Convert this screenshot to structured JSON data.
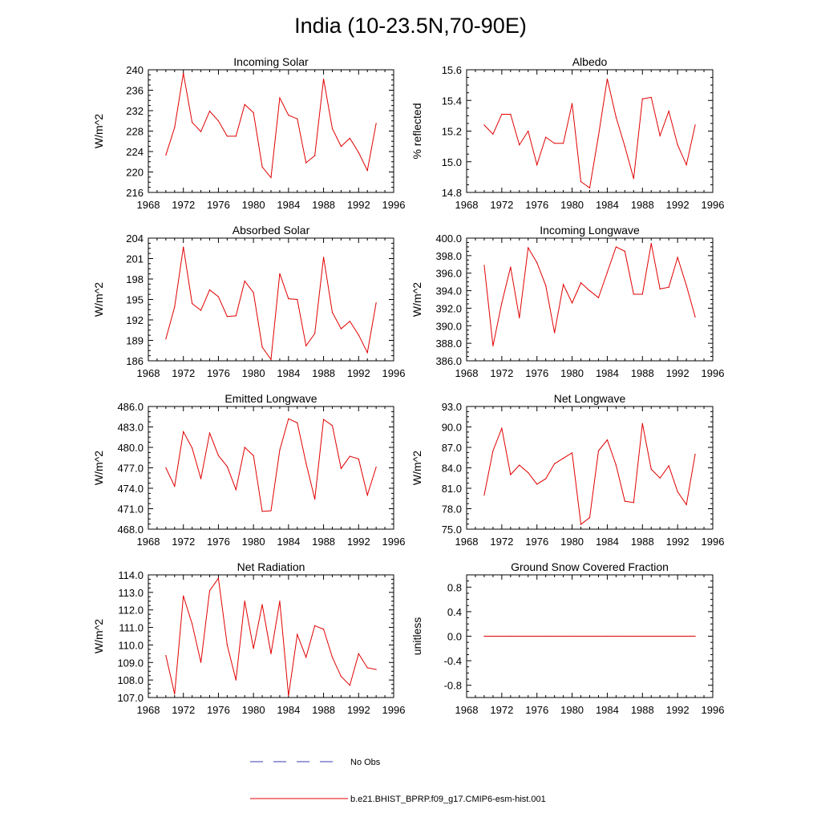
{
  "figure": {
    "title": "India (10-23.5N,70-90E)",
    "series_color": "#e00000",
    "obs_color": "#3b3bb3"
  },
  "legend": {
    "obs_label": "No Obs",
    "model_label": "b.e21.BHIST_BPRP.f09_g17.CMIP6-esm-hist.001"
  },
  "chart_data": [
    {
      "type": "line",
      "title": "Incoming Solar",
      "ylabel": "W/m^2",
      "xlabel": "",
      "xlim": [
        1968,
        1996
      ],
      "xticks": [
        "1968",
        "1972",
        "1976",
        "1980",
        "1984",
        "1988",
        "1992",
        "1996"
      ],
      "ylim": [
        216,
        240
      ],
      "yticks": [
        "216",
        "220",
        "224",
        "228",
        "232",
        "236",
        "240"
      ],
      "series": [
        {
          "name": "b.e21.BHIST_BPRP.f09_g17.CMIP6-esm-hist.001",
          "x": [
            1970,
            1971,
            1972,
            1973,
            1974,
            1975,
            1976,
            1977,
            1978,
            1979,
            1980,
            1981,
            1982,
            1983,
            1984,
            1985,
            1986,
            1987,
            1988,
            1989,
            1990,
            1991,
            1992,
            1993,
            1994
          ],
          "values": [
            223.3,
            228.7,
            239.3,
            229.7,
            227.9,
            231.9,
            230.0,
            227.0,
            227.0,
            233.2,
            231.6,
            221.0,
            218.9,
            234.5,
            231.1,
            230.4,
            221.8,
            223.2,
            238.2,
            228.5,
            225.0,
            226.6,
            223.8,
            220.3,
            229.5
          ]
        }
      ]
    },
    {
      "type": "line",
      "title": "Albedo",
      "ylabel": "% reflected",
      "xlabel": "",
      "xlim": [
        1968,
        1996
      ],
      "xticks": [
        "1968",
        "1972",
        "1976",
        "1980",
        "1984",
        "1988",
        "1992",
        "1996"
      ],
      "ylim": [
        14.8,
        15.6
      ],
      "yticks": [
        "14.8",
        "15.0",
        "15.2",
        "15.4",
        "15.6"
      ],
      "series": [
        {
          "name": "b.e21.BHIST_BPRP.f09_g17.CMIP6-esm-hist.001",
          "x": [
            1970,
            1971,
            1972,
            1973,
            1974,
            1975,
            1976,
            1977,
            1978,
            1979,
            1980,
            1981,
            1982,
            1983,
            1984,
            1985,
            1986,
            1987,
            1988,
            1989,
            1990,
            1991,
            1992,
            1993,
            1994
          ],
          "values": [
            15.24,
            15.18,
            15.31,
            15.31,
            15.11,
            15.2,
            14.98,
            15.16,
            15.12,
            15.12,
            15.38,
            14.87,
            14.83,
            15.17,
            15.54,
            15.29,
            15.1,
            14.89,
            15.41,
            15.42,
            15.17,
            15.33,
            15.11,
            14.98,
            15.24
          ]
        }
      ]
    },
    {
      "type": "line",
      "title": "Absorbed Solar",
      "ylabel": "W/m^2",
      "xlabel": "",
      "xlim": [
        1968,
        1996
      ],
      "xticks": [
        "1968",
        "1972",
        "1976",
        "1980",
        "1984",
        "1988",
        "1992",
        "1996"
      ],
      "ylim": [
        186,
        204
      ],
      "yticks": [
        "186",
        "189",
        "192",
        "195",
        "198",
        "201",
        "204"
      ],
      "series": [
        {
          "name": "b.e21.BHIST_BPRP.f09_g17.CMIP6-esm-hist.001",
          "x": [
            1970,
            1971,
            1972,
            1973,
            1974,
            1975,
            1976,
            1977,
            1978,
            1979,
            1980,
            1981,
            1982,
            1983,
            1984,
            1985,
            1986,
            1987,
            1988,
            1989,
            1990,
            1991,
            1992,
            1993,
            1994
          ],
          "values": [
            189.2,
            193.9,
            202.7,
            194.4,
            193.4,
            196.4,
            195.4,
            192.5,
            192.6,
            197.7,
            196.0,
            188.0,
            186.2,
            198.8,
            195.1,
            195.0,
            188.2,
            190.0,
            201.2,
            193.1,
            190.7,
            191.8,
            189.8,
            187.2,
            194.5
          ]
        }
      ]
    },
    {
      "type": "line",
      "title": "Incoming Longwave",
      "ylabel": "W/m^2",
      "xlabel": "",
      "xlim": [
        1968,
        1996
      ],
      "xticks": [
        "1968",
        "1972",
        "1976",
        "1980",
        "1984",
        "1988",
        "1992",
        "1996"
      ],
      "ylim": [
        386,
        400
      ],
      "yticks": [
        "386.0",
        "388.0",
        "390.0",
        "392.0",
        "394.0",
        "396.0",
        "398.0",
        "400.0"
      ],
      "series": [
        {
          "name": "b.e21.BHIST_BPRP.f09_g17.CMIP6-esm-hist.001",
          "x": [
            1970,
            1971,
            1972,
            1973,
            1974,
            1975,
            1976,
            1977,
            1978,
            1979,
            1980,
            1981,
            1982,
            1983,
            1984,
            1985,
            1986,
            1987,
            1988,
            1989,
            1990,
            1991,
            1992,
            1993,
            1994
          ],
          "values": [
            396.9,
            387.7,
            392.6,
            396.7,
            390.9,
            398.9,
            397.2,
            394.6,
            389.2,
            394.7,
            392.6,
            394.9,
            394.0,
            393.2,
            396.1,
            399.0,
            398.5,
            393.6,
            393.6,
            399.4,
            394.2,
            394.4,
            397.8,
            394.6,
            391.0
          ]
        }
      ]
    },
    {
      "type": "line",
      "title": "Emitted Longwave",
      "ylabel": "W/m^2",
      "xlabel": "",
      "xlim": [
        1968,
        1996
      ],
      "xticks": [
        "1968",
        "1972",
        "1976",
        "1980",
        "1984",
        "1988",
        "1992",
        "1996"
      ],
      "ylim": [
        468,
        486
      ],
      "yticks": [
        "468.0",
        "471.0",
        "474.0",
        "477.0",
        "480.0",
        "483.0",
        "486.0"
      ],
      "series": [
        {
          "name": "b.e21.BHIST_BPRP.f09_g17.CMIP6-esm-hist.001",
          "x": [
            1970,
            1971,
            1972,
            1973,
            1974,
            1975,
            1976,
            1977,
            1978,
            1979,
            1980,
            1981,
            1982,
            1983,
            1984,
            1985,
            1986,
            1987,
            1988,
            1989,
            1990,
            1991,
            1992,
            1993,
            1994
          ],
          "values": [
            477.0,
            474.3,
            482.3,
            479.9,
            475.4,
            482.1,
            478.8,
            477.2,
            473.8,
            480.0,
            478.8,
            470.6,
            470.7,
            479.6,
            484.2,
            483.6,
            477.7,
            472.4,
            484.1,
            483.2,
            476.9,
            478.7,
            478.3,
            473.0,
            477.1
          ]
        }
      ]
    },
    {
      "type": "line",
      "title": "Net Longwave",
      "ylabel": "W/m^2",
      "xlabel": "",
      "xlim": [
        1968,
        1996
      ],
      "xticks": [
        "1968",
        "1972",
        "1976",
        "1980",
        "1984",
        "1988",
        "1992",
        "1996"
      ],
      "ylim": [
        75,
        93
      ],
      "yticks": [
        "75.0",
        "78.0",
        "81.0",
        "84.0",
        "87.0",
        "90.0",
        "93.0"
      ],
      "series": [
        {
          "name": "b.e21.BHIST_BPRP.f09_g17.CMIP6-esm-hist.001",
          "x": [
            1970,
            1971,
            1972,
            1973,
            1974,
            1975,
            1976,
            1977,
            1978,
            1979,
            1980,
            1981,
            1982,
            1983,
            1984,
            1985,
            1986,
            1987,
            1988,
            1989,
            1990,
            1991,
            1992,
            1993,
            1994
          ],
          "values": [
            80.0,
            86.5,
            89.8,
            83.0,
            84.4,
            83.3,
            81.6,
            82.4,
            84.6,
            85.4,
            86.2,
            75.7,
            76.7,
            86.5,
            88.1,
            84.4,
            79.1,
            78.9,
            90.5,
            83.8,
            82.5,
            84.3,
            80.5,
            78.6,
            86.0
          ]
        }
      ]
    },
    {
      "type": "line",
      "title": "Net Radiation",
      "ylabel": "W/m^2",
      "xlabel": "",
      "xlim": [
        1968,
        1996
      ],
      "xticks": [
        "1968",
        "1972",
        "1976",
        "1980",
        "1984",
        "1988",
        "1992",
        "1996"
      ],
      "ylim": [
        107,
        114
      ],
      "yticks": [
        "107.0",
        "108.0",
        "109.0",
        "110.0",
        "111.0",
        "112.0",
        "113.0",
        "114.0"
      ],
      "series": [
        {
          "name": "b.e21.BHIST_BPRP.f09_g17.CMIP6-esm-hist.001",
          "x": [
            1970,
            1971,
            1972,
            1973,
            1974,
            1975,
            1976,
            1977,
            1978,
            1979,
            1980,
            1981,
            1982,
            1983,
            1984,
            1985,
            1986,
            1987,
            1988,
            1989,
            1990,
            1991,
            1992,
            1993,
            1994
          ],
          "values": [
            109.4,
            107.2,
            112.8,
            111.2,
            109.0,
            113.1,
            113.8,
            110.0,
            108.0,
            112.5,
            109.8,
            112.3,
            109.5,
            112.5,
            107.1,
            110.6,
            109.3,
            111.1,
            110.9,
            109.3,
            108.2,
            107.7,
            109.5,
            108.7,
            108.6
          ]
        }
      ]
    },
    {
      "type": "line",
      "title": "Ground Snow Covered Fraction",
      "ylabel": "unitless",
      "xlabel": "",
      "xlim": [
        1968,
        1996
      ],
      "xticks": [
        "1968",
        "1972",
        "1976",
        "1980",
        "1984",
        "1988",
        "1992",
        "1996"
      ],
      "ylim": [
        -1.0,
        1.0
      ],
      "yticks": [
        "-0.8",
        "-0.4",
        "0.0",
        "0.4",
        "0.8"
      ],
      "ytick_values": [
        -0.8,
        -0.4,
        0.0,
        0.4,
        0.8
      ],
      "series": [
        {
          "name": "b.e21.BHIST_BPRP.f09_g17.CMIP6-esm-hist.001",
          "x": [
            1970,
            1971,
            1972,
            1973,
            1974,
            1975,
            1976,
            1977,
            1978,
            1979,
            1980,
            1981,
            1982,
            1983,
            1984,
            1985,
            1986,
            1987,
            1988,
            1989,
            1990,
            1991,
            1992,
            1993,
            1994
          ],
          "values": [
            0,
            0,
            0,
            0,
            0,
            0,
            0,
            0,
            0,
            0,
            0,
            0,
            0,
            0,
            0,
            0,
            0,
            0,
            0,
            0,
            0,
            0,
            0,
            0,
            0
          ]
        }
      ]
    }
  ]
}
